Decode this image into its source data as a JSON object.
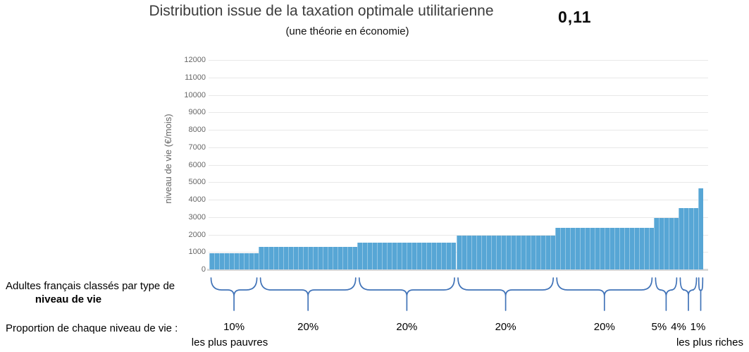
{
  "header": {
    "title": "Distribution issue de la taxation optimale utilitarienne",
    "subtitle": "(une théorie en économie)",
    "indicator_value": "0,11"
  },
  "chart_data": {
    "type": "bar",
    "title": "Distribution issue de la taxation optimale utilitarienne",
    "subtitle": "(une théorie en économie)",
    "ylabel": "niveau de vie (€/mois)",
    "xlabel": "",
    "ylim": [
      0,
      12000
    ],
    "ytick_step": 1000,
    "yticks": [
      0,
      1000,
      2000,
      3000,
      4000,
      5000,
      6000,
      7000,
      8000,
      9000,
      10000,
      11000,
      12000
    ],
    "grid": true,
    "legend": "none",
    "groups": [
      {
        "label": "10%",
        "share_pct": 10,
        "value_eur_month": 950
      },
      {
        "label": "20%",
        "share_pct": 20,
        "value_eur_month": 1300
      },
      {
        "label": "20%",
        "share_pct": 20,
        "value_eur_month": 1550
      },
      {
        "label": "20%",
        "share_pct": 20,
        "value_eur_month": 1950
      },
      {
        "label": "20%",
        "share_pct": 20,
        "value_eur_month": 2400
      },
      {
        "label": "5%",
        "share_pct": 5,
        "value_eur_month": 2950
      },
      {
        "label": "4%",
        "share_pct": 4,
        "value_eur_month": 3500
      },
      {
        "label": "1%",
        "share_pct": 1,
        "value_eur_month": 4650
      }
    ]
  },
  "annotations": {
    "classification_line1": "Adultes français classés par type de",
    "classification_line2": "niveau de vie",
    "proportion_label": "Proportion de chaque niveau de vie :",
    "poorest_label": "les plus pauvres",
    "richest_label": "les plus riches"
  },
  "colors": {
    "bar": "#57a6d5",
    "bar_separator": "rgba(255,255,255,0.35)",
    "brace": "#4173b8",
    "gridline": "#e8e8e8",
    "axis_line": "#d9d9d9",
    "tick_label": "#666666",
    "title": "#3c3c3c"
  }
}
